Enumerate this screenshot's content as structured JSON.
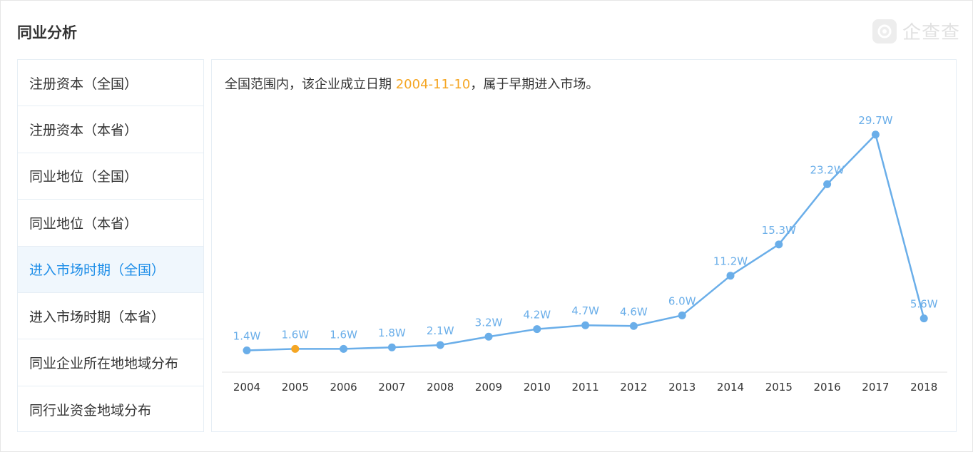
{
  "header": {
    "title": "同业分析",
    "logo_text": "企查查",
    "logo_icon": "qichacha-logo-icon"
  },
  "sidebar": {
    "items": [
      {
        "label": "注册资本（全国）",
        "active": false
      },
      {
        "label": "注册资本（本省）",
        "active": false
      },
      {
        "label": "同业地位（全国）",
        "active": false
      },
      {
        "label": "同业地位（本省）",
        "active": false
      },
      {
        "label": "进入市场时期（全国）",
        "active": true
      },
      {
        "label": "进入市场时期（本省）",
        "active": false
      },
      {
        "label": "同业企业所在地地域分布",
        "active": false
      },
      {
        "label": "同行业资金地域分布",
        "active": false
      }
    ]
  },
  "summary": {
    "prefix": "全国范围内，该企业成立日期 ",
    "date": "2004-11-10",
    "suffix": "，属于早期进入市场。"
  },
  "colors": {
    "accent": "#1e8ee8",
    "line": "#6aaee9",
    "highlight": "#f5a623",
    "label": "#6aaee9"
  },
  "chart_data": {
    "type": "line",
    "categories": [
      "2004",
      "2005",
      "2006",
      "2007",
      "2008",
      "2009",
      "2010",
      "2011",
      "2012",
      "2013",
      "2014",
      "2015",
      "2016",
      "2017",
      "2018"
    ],
    "values": [
      1.4,
      1.6,
      1.6,
      1.8,
      2.1,
      3.2,
      4.2,
      4.7,
      4.6,
      6.0,
      11.2,
      15.3,
      23.2,
      29.7,
      5.6
    ],
    "labels": [
      "1.4W",
      "1.6W",
      "1.6W",
      "1.8W",
      "2.1W",
      "3.2W",
      "4.2W",
      "4.7W",
      "4.6W",
      "6.0W",
      "11.2W",
      "15.3W",
      "23.2W",
      "29.7W",
      "5.6W"
    ],
    "highlight_category": "2005",
    "ylim": [
      0,
      32
    ],
    "grid": false
  }
}
